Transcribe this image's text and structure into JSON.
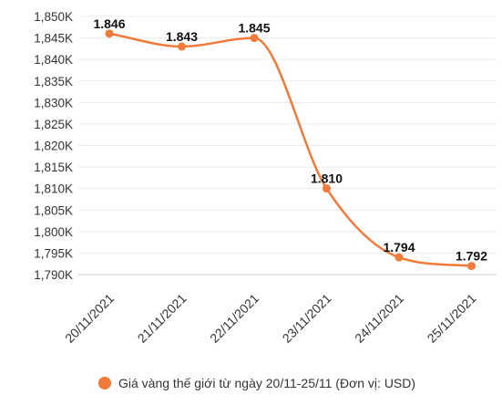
{
  "chart_data": {
    "type": "line",
    "categories": [
      "20/11/2021",
      "21/11/2021",
      "22/11/2021",
      "23/11/2021",
      "24/11/2021",
      "25/11/2021"
    ],
    "series": [
      {
        "name": "Giá vàng thế giới từ ngày 20/11-25/11 (Đơn vị: USD)",
        "values": [
          1846,
          1843,
          1845,
          1810,
          1794,
          1792
        ],
        "labels": [
          "1.846",
          "1.843",
          "1.845",
          "1.810",
          "1.794",
          "1.792"
        ],
        "color": "#f07a3a"
      }
    ],
    "yticks": [
      "1,790K",
      "1,795K",
      "1,800K",
      "1,805K",
      "1,810K",
      "1,815K",
      "1,820K",
      "1,825K",
      "1,830K",
      "1,835K",
      "1,840K",
      "1,845K",
      "1,850K"
    ],
    "ylim": [
      1790,
      1850
    ],
    "grid": true,
    "legend": "bottom",
    "line_style": "smooth"
  }
}
